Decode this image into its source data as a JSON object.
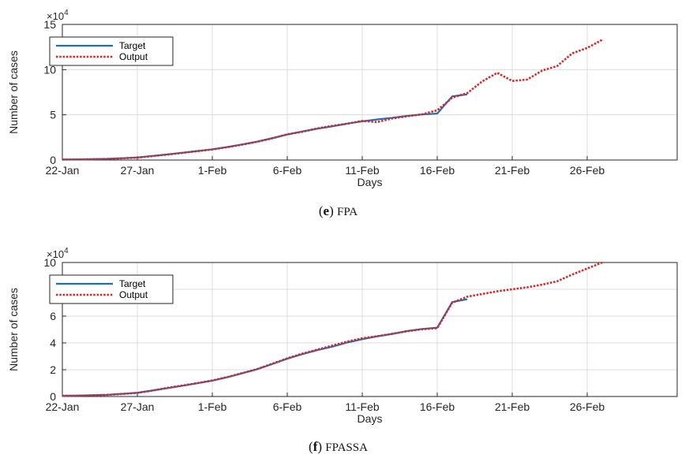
{
  "chart_data": [
    {
      "type": "line",
      "caption": {
        "letter": "e",
        "name": "FPA"
      },
      "xlabel": "Days",
      "ylabel": "Number of cases",
      "x_tick_labels": [
        "22-Jan",
        "27-Jan",
        "1-Feb",
        "6-Feb",
        "11-Feb",
        "16-Feb",
        "21-Feb",
        "26-Feb"
      ],
      "ylim": [
        0,
        15
      ],
      "y_ticks": [
        0,
        5,
        10,
        15
      ],
      "y_multiplier": {
        "base": "×10",
        "exponent": "4"
      },
      "grid": true,
      "legend": "top-left",
      "series": [
        {
          "name": "Target",
          "color": "#1f6fb5",
          "style": "solid",
          "values": [
            0.06,
            0.07,
            0.1,
            0.13,
            0.2,
            0.28,
            0.45,
            0.62,
            0.8,
            0.99,
            1.18,
            1.44,
            1.73,
            2.04,
            2.42,
            2.82,
            3.16,
            3.46,
            3.72,
            4.03,
            4.28,
            4.49,
            4.67,
            4.89,
            5.04,
            5.14,
            7.05,
            7.26
          ]
        },
        {
          "name": "Output",
          "color": "#d62728",
          "style": "dotted",
          "values": [
            0.05,
            0.06,
            0.09,
            0.12,
            0.19,
            0.27,
            0.43,
            0.6,
            0.79,
            0.98,
            1.17,
            1.42,
            1.7,
            2.02,
            2.4,
            2.85,
            3.12,
            3.5,
            3.78,
            4.02,
            4.33,
            4.2,
            4.6,
            4.84,
            5.06,
            5.5,
            6.9,
            7.4,
            8.7,
            9.65,
            8.75,
            8.9,
            9.9,
            10.4,
            11.8,
            12.4,
            13.3
          ]
        }
      ]
    },
    {
      "type": "line",
      "caption": {
        "letter": "f",
        "name": "FPASSA"
      },
      "xlabel": "Days",
      "ylabel": "Number of cases",
      "x_tick_labels": [
        "22-Jan",
        "27-Jan",
        "1-Feb",
        "6-Feb",
        "11-Feb",
        "16-Feb",
        "21-Feb",
        "26-Feb"
      ],
      "ylim": [
        0,
        10
      ],
      "y_ticks": [
        0,
        2,
        4,
        6,
        8,
        10
      ],
      "y_multiplier": {
        "base": "×10",
        "exponent": "4"
      },
      "grid": true,
      "legend": "top-left",
      "series": [
        {
          "name": "Target",
          "color": "#1f6fb5",
          "style": "solid",
          "values": [
            0.06,
            0.07,
            0.1,
            0.13,
            0.2,
            0.28,
            0.45,
            0.62,
            0.8,
            0.99,
            1.18,
            1.44,
            1.73,
            2.04,
            2.42,
            2.82,
            3.16,
            3.46,
            3.72,
            4.03,
            4.28,
            4.49,
            4.67,
            4.89,
            5.04,
            5.14,
            7.05,
            7.26
          ]
        },
        {
          "name": "Output",
          "color": "#d62728",
          "style": "dotted",
          "values": [
            0.05,
            0.06,
            0.09,
            0.12,
            0.19,
            0.27,
            0.44,
            0.65,
            0.82,
            1.0,
            1.2,
            1.45,
            1.75,
            2.05,
            2.45,
            2.85,
            3.2,
            3.5,
            3.8,
            4.1,
            4.35,
            4.5,
            4.68,
            4.87,
            5.02,
            5.1,
            7.0,
            7.45,
            7.65,
            7.85,
            8.0,
            8.15,
            8.35,
            8.6,
            9.1,
            9.55,
            10.0
          ]
        }
      ]
    }
  ]
}
